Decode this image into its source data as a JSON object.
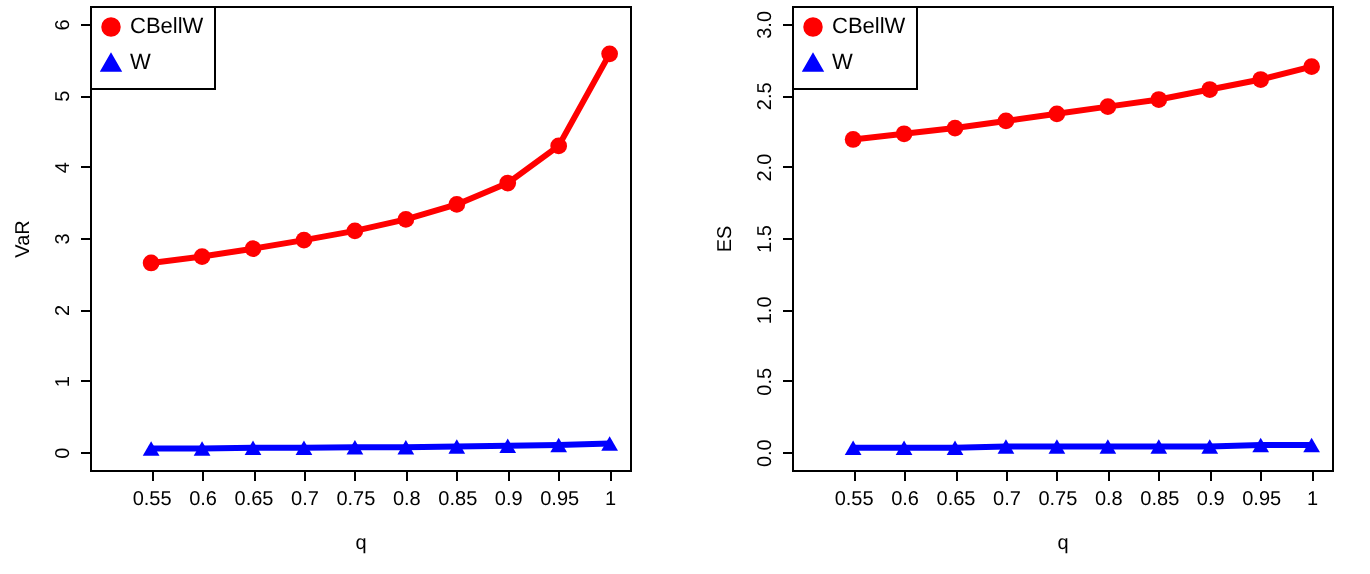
{
  "chart_data": [
    {
      "type": "line",
      "xlabel": "q",
      "ylabel": "VaR",
      "x": [
        0.55,
        0.6,
        0.65,
        0.7,
        0.75,
        0.8,
        0.85,
        0.9,
        0.95,
        1
      ],
      "xlim": [
        0.49,
        1.02
      ],
      "xticks": [
        0.55,
        0.6,
        0.65,
        0.7,
        0.75,
        0.8,
        0.85,
        0.9,
        0.95,
        1
      ],
      "ylim": [
        -0.25,
        6.25
      ],
      "yticks": [
        0,
        1,
        2,
        3,
        4,
        5,
        6
      ],
      "grid": false,
      "legend": "top left",
      "line_style": "solid",
      "series": [
        {
          "name": "CBellW",
          "color": "#ff0000",
          "marker": "circle",
          "values": [
            2.65,
            2.74,
            2.85,
            2.97,
            3.1,
            3.26,
            3.47,
            3.77,
            4.29,
            5.58
          ]
        },
        {
          "name": "W",
          "color": "#0000ff",
          "marker": "triangle",
          "values": [
            0.05,
            0.05,
            0.06,
            0.06,
            0.07,
            0.07,
            0.08,
            0.09,
            0.1,
            0.12
          ]
        }
      ]
    },
    {
      "type": "line",
      "xlabel": "q",
      "ylabel": "ES",
      "x": [
        0.55,
        0.6,
        0.65,
        0.7,
        0.75,
        0.8,
        0.85,
        0.9,
        0.95,
        1
      ],
      "xlim": [
        0.49,
        1.02
      ],
      "xticks": [
        0.55,
        0.6,
        0.65,
        0.7,
        0.75,
        0.8,
        0.85,
        0.9,
        0.95,
        1
      ],
      "ylim": [
        -0.125,
        3.125
      ],
      "yticks": [
        {
          "value": 0,
          "label": "0.0"
        },
        0.5,
        {
          "value": 1,
          "label": "1.0"
        },
        1.5,
        {
          "value": 2,
          "label": "2.0"
        },
        2.5,
        {
          "value": 3,
          "label": "3.0"
        }
      ],
      "grid": false,
      "legend": "top left",
      "line_style": "solid",
      "series": [
        {
          "name": "CBellW",
          "color": "#ff0000",
          "marker": "circle",
          "values": [
            2.19,
            2.23,
            2.27,
            2.32,
            2.37,
            2.42,
            2.47,
            2.54,
            2.61,
            2.7
          ]
        },
        {
          "name": "W",
          "color": "#0000ff",
          "marker": "triangle",
          "values": [
            0.03,
            0.03,
            0.03,
            0.04,
            0.04,
            0.04,
            0.04,
            0.04,
            0.05,
            0.05
          ]
        }
      ]
    }
  ]
}
